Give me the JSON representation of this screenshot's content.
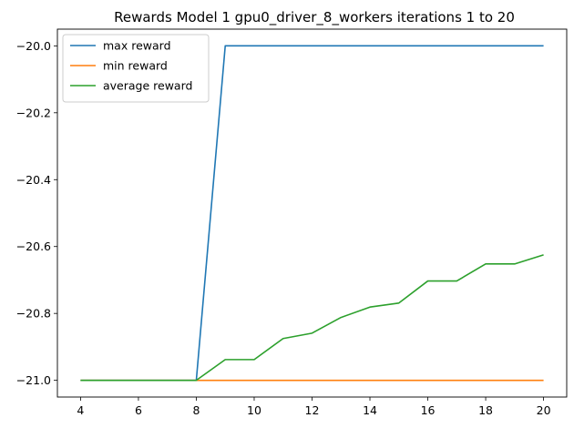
{
  "chart_data": {
    "type": "line",
    "title": "Rewards Model 1 gpu0_driver_8_workers iterations 1 to 20",
    "xlabel": "",
    "ylabel": "",
    "x": [
      4,
      5,
      6,
      7,
      8,
      9,
      10,
      11,
      12,
      13,
      14,
      15,
      16,
      17,
      18,
      19,
      20
    ],
    "xlim": [
      3.2,
      20.8
    ],
    "ylim": [
      -21.05,
      -19.95
    ],
    "xticks": [
      4,
      6,
      8,
      10,
      12,
      14,
      16,
      18,
      20
    ],
    "yticks": [
      -21.0,
      -20.8,
      -20.6,
      -20.4,
      -20.2,
      -20.0
    ],
    "xtick_labels": [
      "4",
      "6",
      "8",
      "10",
      "12",
      "14",
      "16",
      "18",
      "20"
    ],
    "ytick_labels": [
      "−21.0",
      "−20.8",
      "−20.6",
      "−20.4",
      "−20.2",
      "−20.0"
    ],
    "grid": false,
    "legend_position": "upper-left",
    "series": [
      {
        "name": "max reward",
        "color": "#1f77b4",
        "values": [
          -21.0,
          -21.0,
          -21.0,
          -21.0,
          -21.0,
          -20.0,
          -20.0,
          -20.0,
          -20.0,
          -20.0,
          -20.0,
          -20.0,
          -20.0,
          -20.0,
          -20.0,
          -20.0,
          -20.0
        ]
      },
      {
        "name": "min reward",
        "color": "#ff7f0e",
        "values": [
          -21.0,
          -21.0,
          -21.0,
          -21.0,
          -21.0,
          -21.0,
          -21.0,
          -21.0,
          -21.0,
          -21.0,
          -21.0,
          -21.0,
          -21.0,
          -21.0,
          -21.0,
          -21.0,
          -21.0
        ]
      },
      {
        "name": "average reward",
        "color": "#2ca02c",
        "values": [
          -21.0,
          -21.0,
          -21.0,
          -21.0,
          -21.0,
          -20.938,
          -20.938,
          -20.875,
          -20.859,
          -20.812,
          -20.781,
          -20.769,
          -20.703,
          -20.703,
          -20.652,
          -20.652,
          -20.625
        ]
      }
    ]
  }
}
